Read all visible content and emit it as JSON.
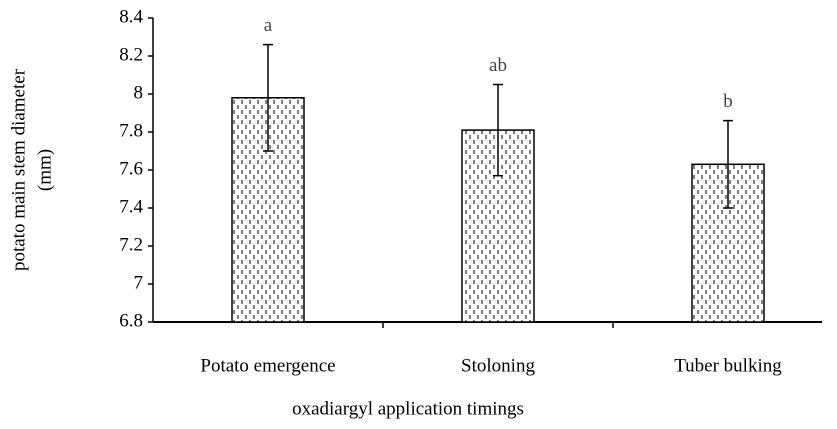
{
  "chart_data": {
    "type": "bar",
    "xlabel": "oxadiargyl application timings",
    "ylabel_lines": [
      "potato main stem diameter",
      "(mm)"
    ],
    "categories": [
      "Potato emergence",
      "Stoloning",
      "Tuber bulking"
    ],
    "values": [
      7.98,
      7.81,
      7.63
    ],
    "errors": [
      0.28,
      0.24,
      0.23
    ],
    "significance_letters": [
      "a",
      "ab",
      "b"
    ],
    "color": "#ffffff",
    "ylim": [
      6.8,
      8.4
    ],
    "yticks": [
      6.8,
      7,
      7.2,
      7.4,
      7.6,
      7.8,
      8,
      8.2,
      8.4
    ],
    "grid": false
  }
}
